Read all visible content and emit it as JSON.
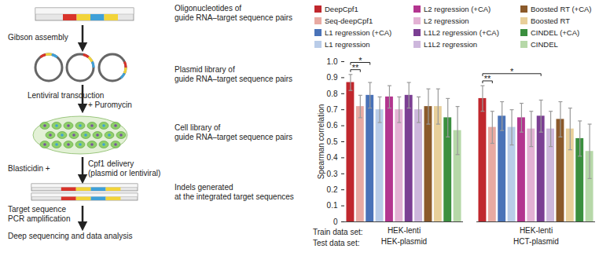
{
  "diagram": {
    "descriptions": [
      [
        "Oligonucleotides of",
        "guide RNA–target sequence pairs"
      ],
      [
        "Plasmid library of",
        "guide RNA–target sequence pairs"
      ],
      [
        "Cell library of",
        "guide RNA–target sequence pairs"
      ],
      [
        "Indels generated",
        "at the integrated target sequences"
      ]
    ],
    "arrows": [
      {
        "left": [
          "Gibson assembly"
        ],
        "right": []
      },
      {
        "left": [
          "Lentiviral transduction"
        ],
        "right": [
          "+ Puromycin"
        ]
      },
      {
        "left": [
          "Blasticidin +"
        ],
        "right": [
          "Cpf1 delivery",
          "(plasmid or lentiviral)"
        ]
      },
      {
        "left": [
          "Target sequence",
          "PCR amplification"
        ],
        "right": []
      }
    ],
    "final": "Deep sequencing and data analysis"
  },
  "chart_data": {
    "type": "bar",
    "y_label": "Spearman correlation",
    "categories": [
      "HEK-plasmid",
      "HCT-plasmid"
    ],
    "train_label": "Train data set:",
    "test_label": "Test data set:",
    "train_sets": [
      "HEK-lenti",
      "HEK-lenti"
    ],
    "ylim": [
      0,
      1
    ],
    "yticks": [
      0,
      0.1,
      0.2,
      0.3,
      0.4,
      0.5,
      0.6,
      0.7,
      0.8,
      0.9,
      {
        "value": 1,
        "label": "1.0"
      }
    ],
    "legend": "top",
    "series": [
      {
        "name": "DeepCpf1",
        "color": "#c0272d",
        "values": [
          0.87,
          0.77
        ],
        "errors": [
          0.05,
          0.08
        ]
      },
      {
        "name": "Seq-deepCpf1",
        "color": "#e8aaa2",
        "values": [
          0.72,
          0.59
        ],
        "errors": [
          0.07,
          0.1
        ]
      },
      {
        "name": "L1 regression (+CA)",
        "color": "#4a73b8",
        "values": [
          0.79,
          0.66
        ],
        "errors": [
          0.08,
          0.09
        ]
      },
      {
        "name": "L1 regression",
        "color": "#b9cce8",
        "values": [
          0.7,
          0.59
        ],
        "errors": [
          0.08,
          0.11
        ]
      },
      {
        "name": "L2 regression (+CA)",
        "color": "#b3358f",
        "values": [
          0.78,
          0.65
        ],
        "errors": [
          0.07,
          0.09
        ]
      },
      {
        "name": "L2 regression",
        "color": "#e3b2d4",
        "values": [
          0.7,
          0.58
        ],
        "errors": [
          0.08,
          0.11
        ]
      },
      {
        "name": "L1L2 regression (+CA)",
        "color": "#7b3f93",
        "values": [
          0.79,
          0.66
        ],
        "errors": [
          0.08,
          0.1
        ]
      },
      {
        "name": "L1L2 regression",
        "color": "#cdb7dc",
        "values": [
          0.7,
          0.58
        ],
        "errors": [
          0.08,
          0.11
        ]
      },
      {
        "name": "Boosted RT (+CA)",
        "color": "#8b5a2b",
        "values": [
          0.72,
          0.64
        ],
        "errors": [
          0.11,
          0.11
        ]
      },
      {
        "name": "Boosted RT",
        "color": "#e8cf9a",
        "values": [
          0.72,
          0.58
        ],
        "errors": [
          0.11,
          0.13
        ]
      },
      {
        "name": "CINDEL (+CA)",
        "color": "#3b8f3f",
        "values": [
          0.65,
          0.52
        ],
        "errors": [
          0.12,
          0.11
        ]
      },
      {
        "name": "CINDEL",
        "color": "#b6d8a8",
        "values": [
          0.57,
          0.44
        ],
        "errors": [
          0.15,
          0.17
        ]
      }
    ],
    "annotations": [
      {
        "category": "HEK-plasmid",
        "from": "DeepCpf1",
        "to": "Seq-deepCpf1",
        "text": "**"
      },
      {
        "category": "HEK-plasmid",
        "from": "DeepCpf1",
        "to": "L1 regression (+CA)",
        "text": "*"
      },
      {
        "category": "HCT-plasmid",
        "from": "DeepCpf1",
        "to": "Seq-deepCpf1",
        "text": "**"
      },
      {
        "category": "HCT-plasmid",
        "from": "DeepCpf1",
        "to": "L1L2 regression (+CA)",
        "text": "*"
      }
    ]
  }
}
